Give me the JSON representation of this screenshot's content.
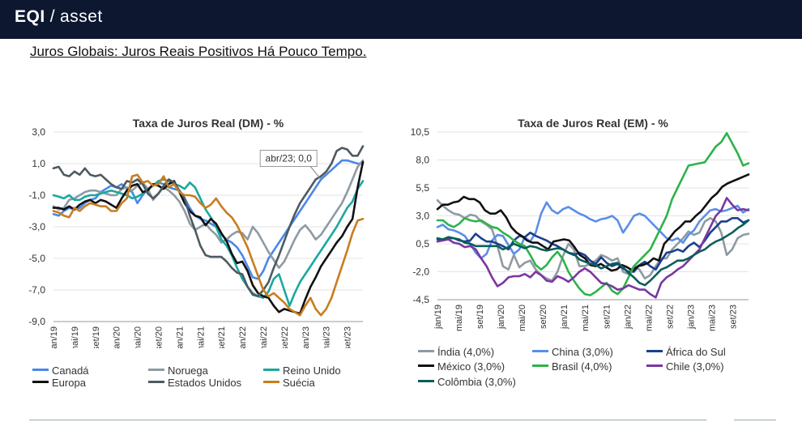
{
  "header": {
    "brand_logo": "EQI",
    "brand_sep": "/",
    "brand_product": "asset"
  },
  "page": {
    "title": "Juros Globais: Juros Reais Positivos Há Pouco Tempo."
  },
  "chart_data": [
    {
      "id": "dm",
      "type": "line",
      "title": "Taxa de Juros Real (DM) - %",
      "ylabel": "",
      "xlabel": "",
      "ylim": [
        -9.0,
        3.0
      ],
      "yticks": [
        3.0,
        1.0,
        -1.0,
        -3.0,
        -5.0,
        -7.0,
        -9.0
      ],
      "ytick_labels": [
        "3,0",
        "1,0",
        "-1,0",
        "-3,0",
        "-5,0",
        "-7,0",
        "-9,0"
      ],
      "xticks": [
        "jan/19",
        "mai/19",
        "set/19",
        "jan/20",
        "mai/20",
        "set/20",
        "jan/21",
        "mai/21",
        "set/21",
        "jan/22",
        "mai/22",
        "set/22",
        "jan/23",
        "mai/23",
        "set/23"
      ],
      "annotation": {
        "text": "abr/23; 0,0",
        "month_index": 51,
        "value": 0.0
      },
      "series": [
        {
          "name": "Canadá",
          "color": "#4a88e8",
          "values": [
            -2.2,
            -2.3,
            -2.0,
            -1.8,
            -1.9,
            -1.8,
            -1.5,
            -1.3,
            -1.2,
            -0.8,
            -0.6,
            -0.4,
            -0.5,
            -0.3,
            -0.6,
            -0.8,
            -1.5,
            -1.0,
            -0.6,
            -0.4,
            -0.2,
            -0.3,
            -0.5,
            -0.6,
            -0.7,
            -1.2,
            -1.8,
            -2.3,
            -2.5,
            -2.6,
            -2.8,
            -3.0,
            -3.5,
            -3.8,
            -4.0,
            -4.3,
            -4.8,
            -5.5,
            -6.2,
            -6.3,
            -5.8,
            -5.0,
            -4.5,
            -4.0,
            -3.5,
            -3.0,
            -2.5,
            -2.0,
            -1.5,
            -1.0,
            -0.5,
            0.0,
            0.3,
            0.6,
            0.9,
            1.2,
            1.2,
            1.1,
            1.0,
            1.0
          ]
        },
        {
          "name": "Noruega",
          "color": "#8f9aa3",
          "values": [
            -1.7,
            -1.9,
            -1.8,
            -1.3,
            -1.2,
            -1.0,
            -0.8,
            -0.7,
            -0.7,
            -0.8,
            -0.9,
            -1.0,
            -1.0,
            -0.6,
            -0.5,
            -0.7,
            -0.4,
            -0.2,
            -0.6,
            -1.3,
            -0.9,
            -0.5,
            -0.7,
            -1.0,
            -1.4,
            -2.0,
            -2.8,
            -3.2,
            -3.0,
            -2.8,
            -3.2,
            -3.5,
            -4.0,
            -3.8,
            -3.5,
            -3.3,
            -3.4,
            -3.8,
            -3.0,
            -3.4,
            -4.0,
            -4.6,
            -5.1,
            -5.6,
            -5.2,
            -4.5,
            -3.8,
            -3.2,
            -2.9,
            -3.3,
            -3.8,
            -3.5,
            -3.0,
            -2.5,
            -2.0,
            -1.5,
            -0.8,
            0.0,
            0.8,
            1.2
          ]
        },
        {
          "name": "Reino Unido",
          "color": "#1aa8a0",
          "values": [
            -1.0,
            -1.1,
            -1.2,
            -1.0,
            -1.3,
            -1.3,
            -1.1,
            -1.0,
            -1.0,
            -0.9,
            -0.8,
            -0.7,
            -0.8,
            -0.9,
            -1.0,
            -1.2,
            -1.1,
            -0.9,
            -0.6,
            -0.4,
            -0.1,
            0.0,
            -0.1,
            -0.3,
            -0.4,
            -0.6,
            -0.2,
            -0.5,
            -1.2,
            -1.9,
            -2.4,
            -3.0,
            -3.8,
            -4.2,
            -4.8,
            -5.6,
            -6.3,
            -6.8,
            -7.2,
            -7.4,
            -7.5,
            -7.1,
            -6.3,
            -6.0,
            -7.0,
            -8.0,
            -7.2,
            -6.5,
            -6.0,
            -5.5,
            -5.0,
            -4.5,
            -4.0,
            -3.5,
            -3.0,
            -2.4,
            -1.8,
            -1.4,
            -0.6,
            -0.1
          ]
        },
        {
          "name": "Europa",
          "color": "#111111",
          "values": [
            -1.8,
            -1.8,
            -1.9,
            -1.7,
            -1.9,
            -1.6,
            -1.4,
            -1.3,
            -1.5,
            -1.3,
            -1.4,
            -1.6,
            -1.8,
            -1.2,
            -0.7,
            -0.4,
            -0.3,
            -0.8,
            -0.7,
            -0.3,
            -0.4,
            -0.6,
            -0.3,
            -0.1,
            -0.8,
            -1.5,
            -2.0,
            -2.3,
            -2.4,
            -2.9,
            -2.5,
            -2.8,
            -3.4,
            -3.9,
            -4.7,
            -5.3,
            -5.2,
            -5.8,
            -6.7,
            -7.2,
            -7.4,
            -7.5,
            -8.0,
            -8.4,
            -8.2,
            -8.3,
            -8.4,
            -8.5,
            -7.6,
            -6.8,
            -6.2,
            -5.5,
            -5.0,
            -4.5,
            -4.0,
            -3.6,
            -3.0,
            -2.5,
            -0.5,
            1.1
          ]
        },
        {
          "name": "Estados Unidos",
          "color": "#4d5a60",
          "values": [
            0.7,
            0.8,
            0.3,
            0.2,
            0.5,
            0.3,
            0.7,
            0.3,
            0.2,
            0.3,
            0.0,
            -0.3,
            -0.5,
            -0.6,
            -0.1,
            -0.2,
            0.0,
            -0.3,
            -0.9,
            -1.2,
            -0.9,
            -0.4,
            0.0,
            -0.2,
            -0.7,
            -1.2,
            -2.3,
            -3.2,
            -4.2,
            -4.8,
            -4.9,
            -4.9,
            -4.9,
            -5.2,
            -5.6,
            -5.9,
            -6.0,
            -6.8,
            -7.3,
            -7.4,
            -7.0,
            -6.5,
            -5.6,
            -4.8,
            -3.9,
            -3.0,
            -2.2,
            -1.5,
            -1.0,
            -0.5,
            0.0,
            0.2,
            0.5,
            1.0,
            1.8,
            2.0,
            1.9,
            1.5,
            1.5,
            2.1
          ]
        },
        {
          "name": "Suécia",
          "color": "#c97d1f",
          "values": [
            -2.0,
            -2.1,
            -2.3,
            -2.4,
            -1.8,
            -2.0,
            -1.7,
            -1.5,
            -1.6,
            -1.7,
            -1.7,
            -2.0,
            -2.0,
            -1.5,
            -1.2,
            0.2,
            0.3,
            -0.2,
            -0.1,
            -0.4,
            -0.3,
            0.2,
            -0.5,
            -0.3,
            -0.8,
            -1.0,
            -1.0,
            -1.1,
            -1.5,
            -1.8,
            -1.6,
            -1.2,
            -1.7,
            -2.1,
            -2.4,
            -2.9,
            -3.6,
            -4.3,
            -5.2,
            -6.1,
            -7.0,
            -7.4,
            -7.2,
            -7.5,
            -7.8,
            -8.2,
            -8.4,
            -8.6,
            -8.0,
            -7.5,
            -8.2,
            -8.6,
            -8.2,
            -7.5,
            -6.5,
            -5.5,
            -4.5,
            -3.4,
            -2.6,
            -2.5
          ]
        }
      ]
    },
    {
      "id": "em",
      "type": "line",
      "title": "Taxa de Juros Real (EM) - %",
      "ylabel": "",
      "xlabel": "",
      "ylim": [
        -4.5,
        10.5
      ],
      "yticks": [
        10.5,
        8.0,
        5.5,
        3.0,
        0.5,
        -2.0,
        -4.5
      ],
      "ytick_labels": [
        "10,5",
        "8,0",
        "5,5",
        "3,0",
        "0,5",
        "-2,0",
        "-4,5"
      ],
      "xticks": [
        "jan/19",
        "mai/19",
        "set/19",
        "jan/20",
        "mai/20",
        "set/20",
        "jan/21",
        "mai/21",
        "set/21",
        "jan/22",
        "mai/22",
        "set/22",
        "jan/23",
        "mai/23",
        "set/23"
      ],
      "series": [
        {
          "name": "Índia (4,0%)",
          "color": "#8f9aa3",
          "values": [
            4.4,
            3.9,
            3.5,
            3.2,
            3.1,
            2.8,
            3.1,
            3.0,
            2.5,
            2.2,
            1.8,
            0.3,
            -1.5,
            -1.8,
            -0.5,
            -1.6,
            -1.2,
            -1.0,
            -1.8,
            -2.3,
            -2.6,
            -2.8,
            -2.0,
            -0.6,
            0.5,
            0.0,
            -1.5,
            -1.5,
            -1.3,
            -1.0,
            -0.5,
            -0.7,
            -1.0,
            -0.8,
            -2.0,
            -2.2,
            -1.5,
            -1.8,
            -2.6,
            -2.3,
            -1.5,
            -0.8,
            -0.8,
            0.0,
            0.5,
            1.0,
            1.6,
            1.3,
            1.5,
            2.5,
            2.8,
            2.5,
            1.5,
            -0.5,
            0.0,
            1.0,
            1.3,
            1.4
          ]
        },
        {
          "name": "China (3,0%)",
          "color": "#5a8ee8",
          "values": [
            2.0,
            2.2,
            1.8,
            1.7,
            1.5,
            1.2,
            0.5,
            -0.3,
            -0.8,
            -0.4,
            0.8,
            1.3,
            1.2,
            0.4,
            -0.4,
            0.0,
            1.1,
            0.7,
            1.5,
            3.2,
            4.2,
            3.5,
            3.2,
            3.6,
            3.8,
            3.5,
            3.2,
            3.0,
            2.7,
            2.5,
            2.7,
            2.8,
            3.0,
            2.6,
            1.5,
            2.2,
            3.0,
            3.2,
            3.0,
            2.5,
            2.0,
            1.5,
            1.0,
            0.8,
            1.0,
            0.6,
            1.3,
            1.7,
            2.5,
            3.0,
            3.5,
            3.6,
            3.4,
            3.5,
            3.7,
            3.9,
            3.3,
            3.6
          ]
        },
        {
          "name": "África do Sul",
          "color": "#1a3f8f",
          "values": [
            0.9,
            0.9,
            1.0,
            1.0,
            0.8,
            0.7,
            0.8,
            1.4,
            1.0,
            0.7,
            0.7,
            0.5,
            0.3,
            0.0,
            0.8,
            1.2,
            1.1,
            1.5,
            1.2,
            1.0,
            0.8,
            0.5,
            0.3,
            0.0,
            -0.3,
            -0.5,
            -0.3,
            -0.5,
            -1.0,
            -1.3,
            -0.7,
            -1.2,
            -1.5,
            -1.3,
            -1.7,
            -2.0,
            -2.0,
            -1.4,
            -1.1,
            -1.5,
            -1.8,
            -1.0,
            -0.3,
            -0.2,
            0.0,
            -0.2,
            0.3,
            0.6,
            0.2,
            0.8,
            1.5,
            2.0,
            2.5,
            2.5,
            2.8,
            2.8,
            2.4,
            2.6
          ]
        },
        {
          "name": "México (3,0%)",
          "color": "#111111",
          "values": [
            3.6,
            4.0,
            4.0,
            4.2,
            4.3,
            4.7,
            4.5,
            4.5,
            4.2,
            3.5,
            3.2,
            3.2,
            3.5,
            2.9,
            2.0,
            1.5,
            1.2,
            0.8,
            0.6,
            0.6,
            0.3,
            0.0,
            0.7,
            0.8,
            0.9,
            0.8,
            0.2,
            -0.5,
            -0.8,
            -1.4,
            -1.5,
            -1.3,
            -1.6,
            -1.9,
            -1.8,
            -1.4,
            -1.6,
            -1.9,
            -1.5,
            -1.4,
            -1.2,
            -0.8,
            -1.0,
            0.5,
            1.0,
            1.6,
            2.0,
            2.5,
            2.5,
            3.0,
            3.4,
            4.0,
            4.6,
            5.0,
            5.6,
            5.9,
            6.1,
            6.3,
            6.5,
            6.7
          ]
        },
        {
          "name": "Brasil (4,0%)",
          "color": "#2db34a",
          "values": [
            2.6,
            2.6,
            2.2,
            2.0,
            2.3,
            2.8,
            2.6,
            2.5,
            2.6,
            2.3,
            2.0,
            1.9,
            1.5,
            1.2,
            0.8,
            0.5,
            0.3,
            -0.5,
            -1.4,
            -1.8,
            -1.4,
            -0.7,
            -0.2,
            -0.9,
            -2.0,
            -2.8,
            -3.5,
            -4.0,
            -4.1,
            -3.8,
            -3.4,
            -3.0,
            -3.7,
            -4.0,
            -3.5,
            -2.5,
            -1.5,
            -1.0,
            -0.5,
            0.0,
            1.0,
            2.0,
            3.0,
            4.5,
            5.5,
            6.5,
            7.5,
            7.6,
            7.7,
            7.8,
            8.5,
            9.2,
            9.6,
            10.4,
            9.5,
            8.6,
            7.5,
            7.7
          ]
        },
        {
          "name": "Chile (3,0%)",
          "color": "#7a37a0",
          "values": [
            0.7,
            0.8,
            0.9,
            0.6,
            0.5,
            0.2,
            0.3,
            0.0,
            -0.8,
            -1.5,
            -2.5,
            -3.3,
            -3.0,
            -2.5,
            -2.4,
            -2.4,
            -2.2,
            -2.5,
            -2.0,
            -2.3,
            -2.8,
            -2.9,
            -2.4,
            -2.6,
            -2.9,
            -2.5,
            -2.0,
            -1.7,
            -2.0,
            -2.5,
            -3.0,
            -3.1,
            -3.3,
            -3.6,
            -3.5,
            -3.2,
            -3.4,
            -3.6,
            -3.6,
            -4.0,
            -4.3,
            -3.0,
            -2.5,
            -2.2,
            -1.8,
            -1.5,
            -1.0,
            -0.5,
            0.0,
            1.0,
            2.0,
            3.0,
            3.5,
            4.6,
            4.0,
            3.5,
            3.6,
            3.5
          ]
        },
        {
          "name": "Colômbia (3,0%)",
          "color": "#0b5e5a",
          "values": [
            1.0,
            0.9,
            1.1,
            1.0,
            0.9,
            0.6,
            0.5,
            0.3,
            0.3,
            0.3,
            0.3,
            0.3,
            0.0,
            0.2,
            0.5,
            0.3,
            0.1,
            0.3,
            0.2,
            0.0,
            -0.1,
            0.0,
            0.1,
            0.0,
            -0.3,
            -0.4,
            -0.9,
            -1.1,
            -1.3,
            -1.4,
            -1.7,
            -1.5,
            -1.3,
            -1.2,
            -1.6,
            -2.1,
            -2.5,
            -3.0,
            -3.2,
            -2.8,
            -2.3,
            -1.8,
            -1.6,
            -1.3,
            -1.0,
            -1.0,
            -0.8,
            -0.5,
            -0.2,
            0.0,
            0.4,
            0.7,
            0.9,
            1.2,
            1.5,
            1.9,
            2.2,
            2.6
          ]
        }
      ]
    }
  ]
}
